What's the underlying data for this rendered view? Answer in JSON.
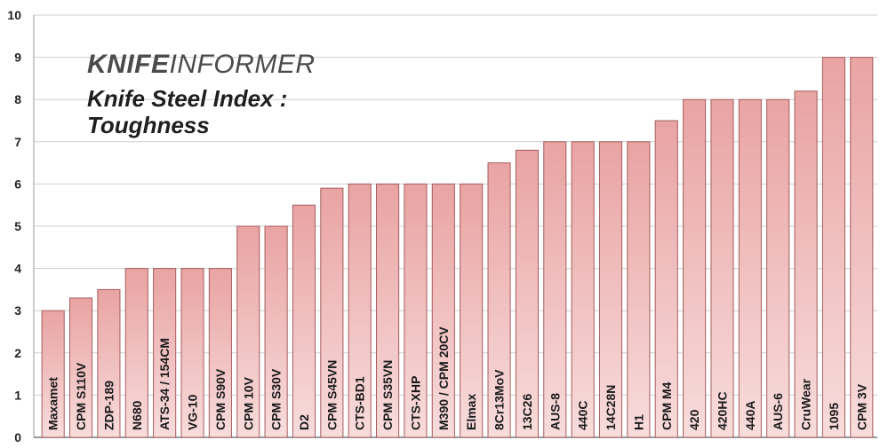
{
  "brand": {
    "bold": "KNIFE",
    "light": "INFORMER"
  },
  "chart_data": {
    "type": "bar",
    "title": "Knife Steel Index :\nToughness",
    "xlabel": "",
    "ylabel": "",
    "ylim": [
      0,
      10
    ],
    "yticks": [
      "0",
      "1",
      "2",
      "3",
      "4",
      "5",
      "6",
      "7",
      "8",
      "9",
      "10"
    ],
    "grid": true,
    "bar_color": "#e9a3a3",
    "categories": [
      "Maxamet",
      "CPM S110V",
      "ZDP-189",
      "N680",
      "ATS-34 / 154CM",
      "VG-10",
      "CPM S90V",
      "CPM 10V",
      "CPM S30V",
      "D2",
      "CPM S45VN",
      "CTS-BD1",
      "CPM S35VN",
      "CTS-XHP",
      "M390 / CPM 20CV",
      "Elmax",
      "8Cr13MoV",
      "13C26",
      "AUS-8",
      "440C",
      "14C28N",
      "H1",
      "CPM M4",
      "420",
      "420HC",
      "440A",
      "AUS-6",
      "CruWear",
      "1095",
      "CPM 3V"
    ],
    "values": [
      3,
      3.3,
      3.5,
      4,
      4,
      4,
      4,
      5,
      5,
      5.5,
      5.9,
      6,
      6,
      6,
      6,
      6,
      6.5,
      6.8,
      7,
      7,
      7,
      7,
      7.5,
      8,
      8,
      8,
      8,
      8.2,
      9,
      9
    ]
  }
}
